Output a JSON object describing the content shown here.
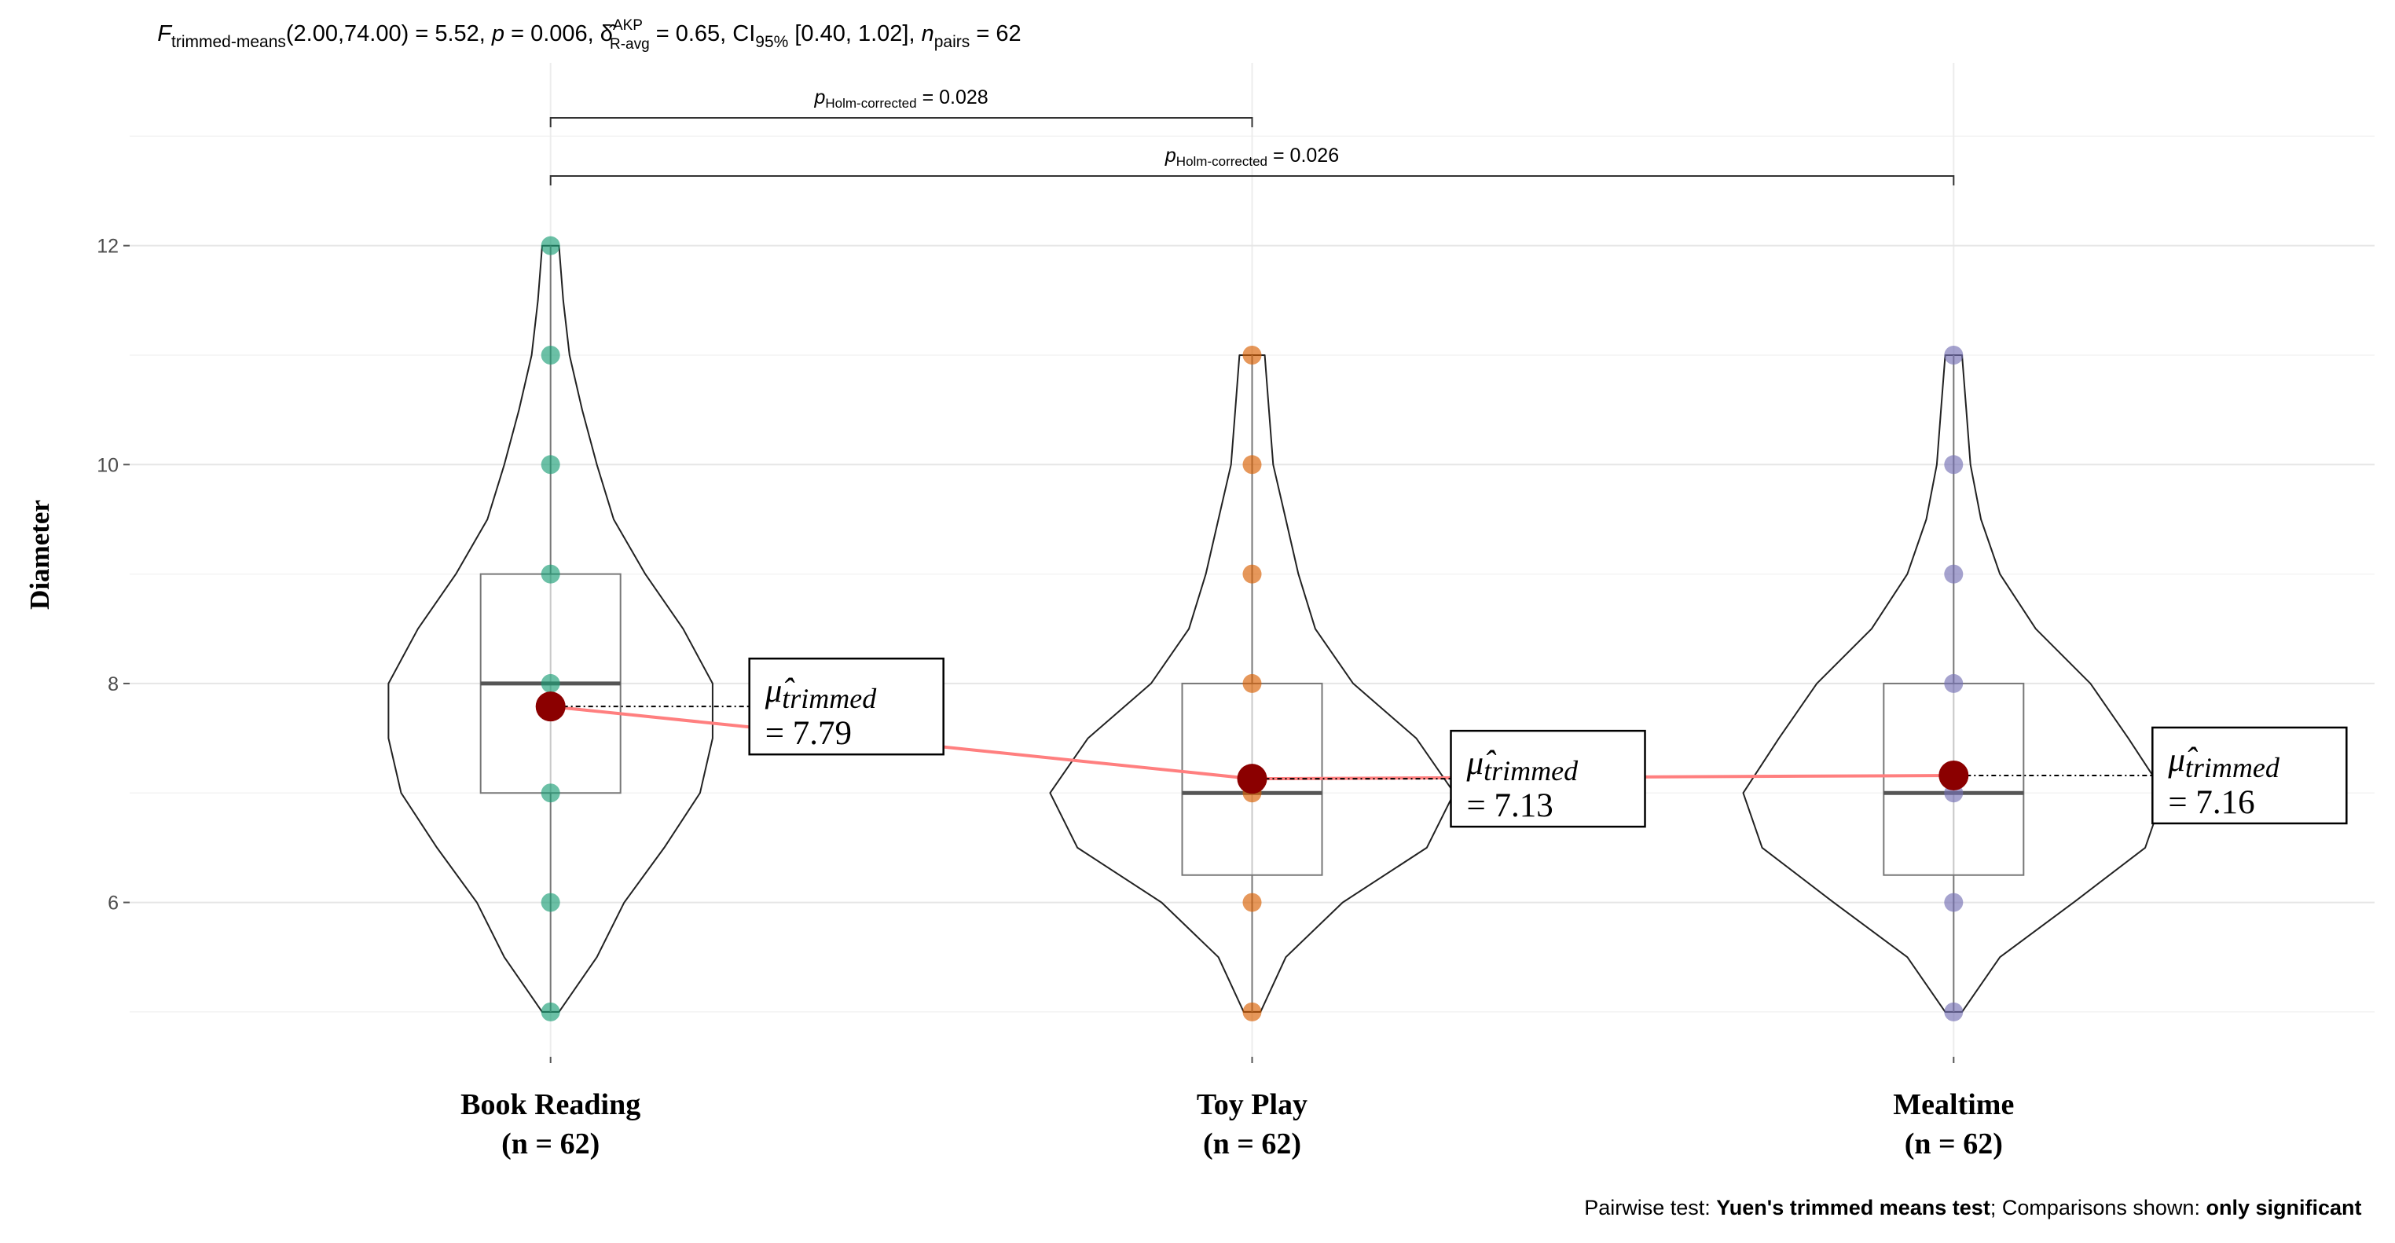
{
  "chart_data": {
    "type": "violin",
    "subtitle": [
      "F",
      "trimmed-means",
      "(2.00,74.00) = 5.52, ",
      "p",
      " = 0.006, ",
      "δ̂",
      "AKP",
      "R-avg",
      " = 0.65, CI",
      "95%",
      " [0.40, 1.02], ",
      "n",
      "pairs",
      " = 62"
    ],
    "y_label": "Diameter",
    "ylim": [
      4.59,
      13.67
    ],
    "yticks": [
      6,
      8,
      10,
      12
    ],
    "minor_grid": [
      5,
      7,
      9,
      11,
      13
    ],
    "grid": true,
    "categories": [
      "Book Reading",
      "Toy Play",
      "Mealtime"
    ],
    "n_labels": [
      "(n = 62)",
      "(n = 62)",
      "(n = 62)"
    ],
    "colors": [
      "#1b9e77",
      "#d95f02",
      "#7570b3"
    ],
    "groups": [
      {
        "points": [
          5,
          6,
          7,
          8,
          9,
          10,
          11,
          12
        ],
        "box": {
          "whisker_low": 5,
          "q1": 7,
          "median": 8,
          "q3": 9,
          "whisker_high": 12
        },
        "violin": {
          "y": [
            5,
            5.5,
            6,
            6.5,
            7,
            7.5,
            8,
            8.5,
            9,
            9.5,
            10,
            10.5,
            11,
            11.5,
            12
          ],
          "width": [
            0.04,
            0.22,
            0.35,
            0.54,
            0.71,
            0.77,
            0.77,
            0.63,
            0.45,
            0.3,
            0.22,
            0.15,
            0.09,
            0.06,
            0.04
          ]
        },
        "trimmed_mean": 7.79,
        "value_label": "= 7.79"
      },
      {
        "points": [
          5,
          6,
          7,
          8,
          9,
          10,
          11
        ],
        "box": {
          "whisker_low": 5,
          "q1": 6.25,
          "median": 7,
          "q3": 8,
          "whisker_high": 11
        },
        "violin": {
          "y": [
            5,
            5.5,
            6,
            6.5,
            7,
            7.5,
            8,
            8.5,
            9,
            9.5,
            10,
            10.5,
            11
          ],
          "width": [
            0.04,
            0.16,
            0.43,
            0.83,
            0.96,
            0.78,
            0.48,
            0.3,
            0.22,
            0.16,
            0.1,
            0.08,
            0.06
          ]
        },
        "trimmed_mean": 7.13,
        "value_label": "= 7.13"
      },
      {
        "points": [
          5,
          6,
          7,
          8,
          9,
          10,
          11
        ],
        "box": {
          "whisker_low": 5,
          "q1": 6.25,
          "median": 7,
          "q3": 8,
          "whisker_high": 11
        },
        "violin": {
          "y": [
            5,
            5.5,
            6,
            6.5,
            7,
            7.5,
            8,
            8.5,
            9,
            9.5,
            10,
            10.5,
            11
          ],
          "width": [
            0.04,
            0.22,
            0.57,
            0.91,
            1.0,
            0.83,
            0.65,
            0.39,
            0.22,
            0.13,
            0.08,
            0.06,
            0.04
          ]
        },
        "trimmed_mean": 7.16,
        "value_label": "= 7.16"
      }
    ],
    "mean_symbol": "μ̂",
    "mean_subscript": "trimmed",
    "mean_color": "#8b0000",
    "mean_line_color": "#ff7f7f",
    "comparisons": [
      {
        "groups": [
          "Book Reading",
          "Toy Play"
        ],
        "p_symbol": "p",
        "p_subscript": "Holm-corrected",
        "value": 0.028,
        "value_label": "= 0.028"
      },
      {
        "groups": [
          "Book Reading",
          "Mealtime"
        ],
        "p_symbol": "p",
        "p_subscript": "Holm-corrected",
        "value": 0.026,
        "value_label": "= 0.026"
      }
    ],
    "caption": [
      "Pairwise test: ",
      "Yuen's trimmed means test",
      "; Comparisons shown: ",
      "only significant"
    ]
  }
}
